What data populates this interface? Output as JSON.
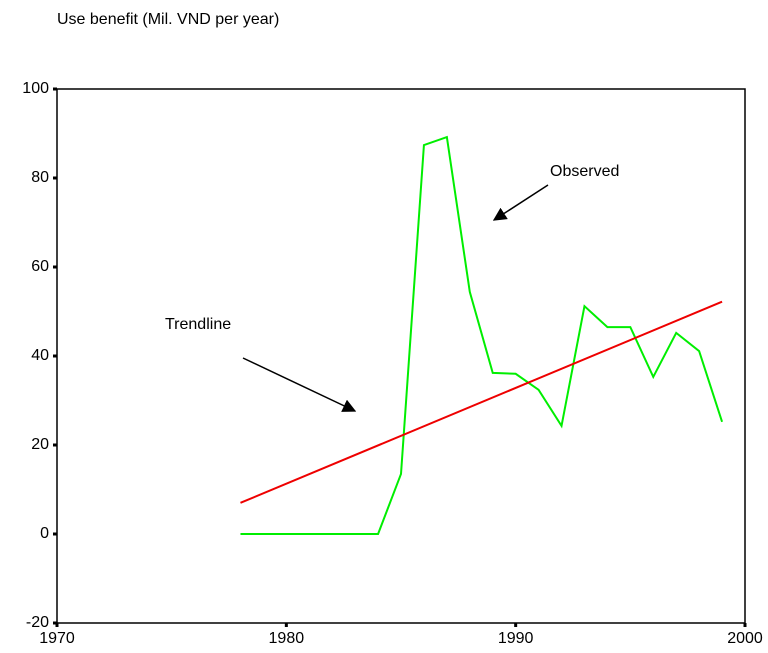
{
  "chart_data": {
    "type": "line",
    "title": "Use benefit (Mil. VND per year)",
    "series": [
      {
        "name": "Observed",
        "color": "#00ee00",
        "x": [
          1978,
          1979,
          1980,
          1981,
          1982,
          1983,
          1984,
          1985,
          1986,
          1987,
          1988,
          1989,
          1990,
          1991,
          1992,
          1993,
          1994,
          1995,
          1996,
          1997,
          1998,
          1999
        ],
        "values": [
          0,
          0,
          0,
          0,
          0,
          0,
          0,
          13.5,
          87.4,
          89.2,
          54.4,
          36.2,
          36,
          32.4,
          24.3,
          51.2,
          46.5,
          46.5,
          35.3,
          45.2,
          41.1,
          25.2
        ]
      },
      {
        "name": "Trendline",
        "color": "#ee0000",
        "x": [
          1978,
          1999
        ],
        "values": [
          7,
          52.2
        ]
      }
    ],
    "xlim": [
      1970,
      2000
    ],
    "xticks": [
      1970,
      1980,
      1990,
      2000
    ],
    "ylim": [
      -20,
      100
    ],
    "yticks": [
      -20,
      0,
      20,
      40,
      60,
      80,
      100
    ]
  }
}
